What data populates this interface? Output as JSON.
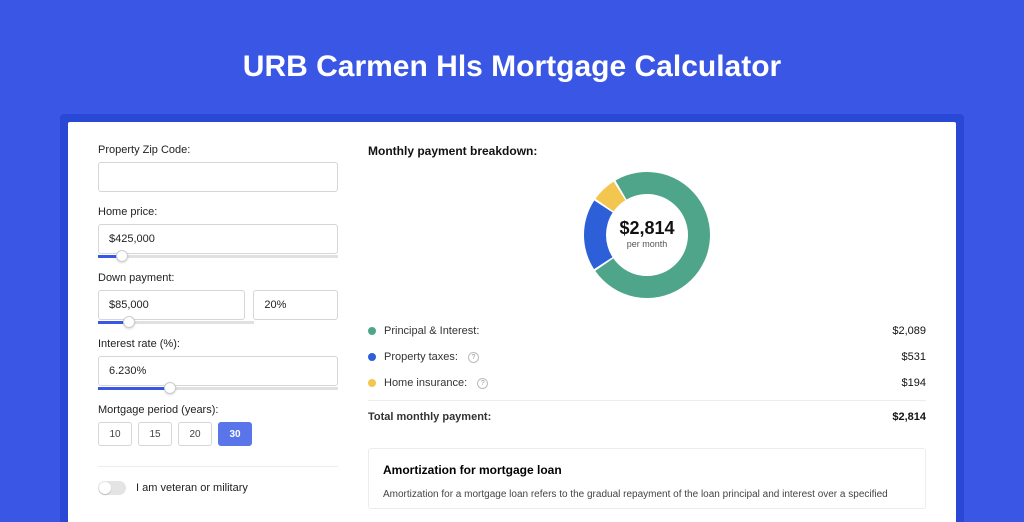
{
  "title": "URB Carmen Hls Mortgage Calculator",
  "form": {
    "zip_label": "Property Zip Code:",
    "zip_value": "",
    "home_price_label": "Home price:",
    "home_price_value": "$425,000",
    "home_price_slider_pct": 10,
    "down_payment_label": "Down payment:",
    "down_payment_value": "$85,000",
    "down_payment_pct": "20%",
    "down_payment_slider_pct": 20,
    "interest_label": "Interest rate (%):",
    "interest_value": "6.230%",
    "interest_slider_pct": 30,
    "period_label": "Mortgage period (years):",
    "period_options": [
      "10",
      "15",
      "20",
      "30"
    ],
    "period_selected": "30",
    "veteran_label": "I am veteran or military",
    "veteran_on": false
  },
  "breakdown": {
    "title": "Monthly payment breakdown:",
    "center_amount": "$2,814",
    "center_sub": "per month",
    "segments": [
      {
        "label": "Principal & Interest:",
        "value": "$2,089",
        "num": 2089,
        "color": "#4fa58a",
        "has_info": false
      },
      {
        "label": "Property taxes:",
        "value": "$531",
        "num": 531,
        "color": "#2c5fd8",
        "has_info": true
      },
      {
        "label": "Home insurance:",
        "value": "$194",
        "num": 194,
        "color": "#f3c74f",
        "has_info": true
      }
    ],
    "total_label": "Total monthly payment:",
    "total_value": "$2,814",
    "donut": {
      "size": 130,
      "thickness": 22,
      "gap_deg": 2,
      "start_angle": -120
    }
  },
  "amortization": {
    "title": "Amortization for mortgage loan",
    "text": "Amortization for a mortgage loan refers to the gradual repayment of the loan principal and interest over a specified"
  },
  "colors": {
    "page_bg": "#3957e4",
    "frame_bg": "#2a48d6",
    "input_border": "#d6d6d6"
  }
}
